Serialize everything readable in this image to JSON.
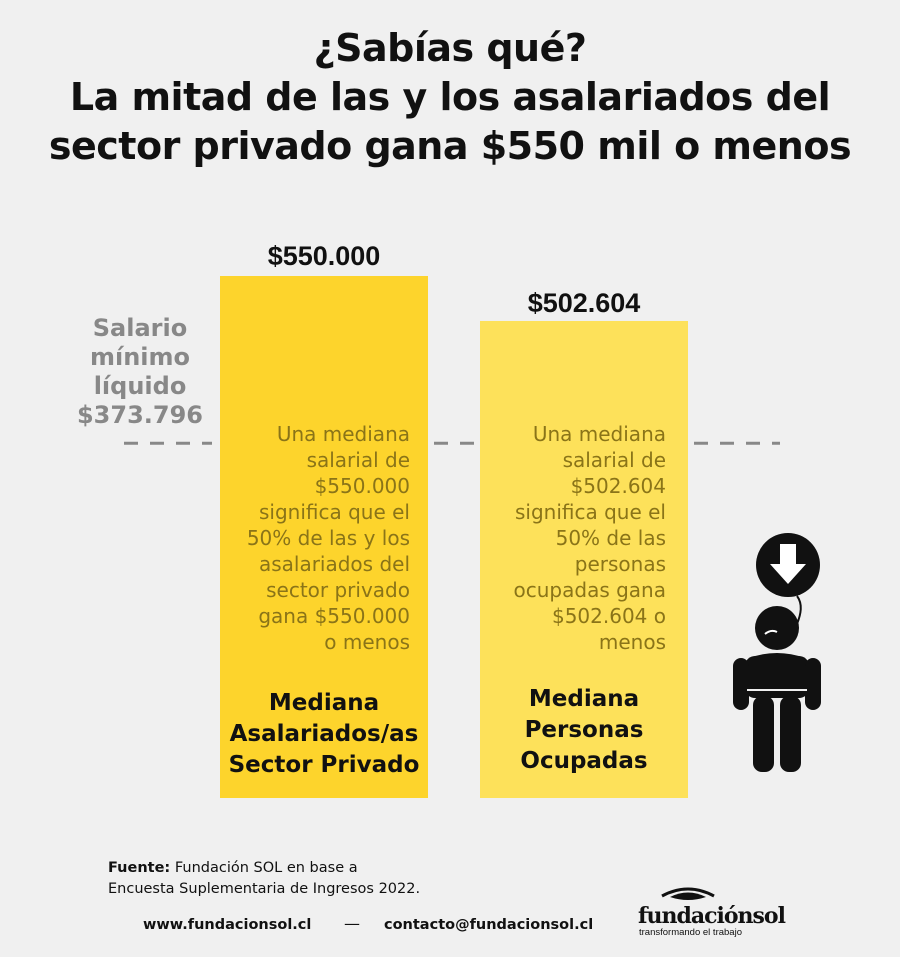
{
  "title": {
    "line1": "¿Sabías qué?",
    "line2": "La mitad de las y los asalariados del",
    "line3": "sector privado gana $550 mil o menos"
  },
  "chart_data": {
    "type": "bar",
    "categories": [
      "Mediana Asalariados/as Sector Privado",
      "Mediana Personas Ocupadas"
    ],
    "values": [
      550000,
      502604
    ],
    "value_labels": [
      "$550.000",
      "$502.604"
    ],
    "bar_colors": [
      "#fdd42c",
      "#fde15a"
    ],
    "descriptions": [
      [
        "Una mediana",
        "salarial de",
        "$550.000",
        "significa que el",
        "50% de las y los",
        "asalariados del",
        "sector privado",
        "gana $550.000",
        "o menos"
      ],
      [
        "Una mediana",
        "salarial de",
        "$502.604",
        "significa que el",
        "50% de las",
        "personas",
        "ocupadas gana",
        "$502.604 o",
        "menos"
      ]
    ],
    "category_lines": [
      [
        "Mediana",
        "Asalariados/as",
        "Sector Privado"
      ],
      [
        "Mediana",
        "Personas",
        "Ocupadas"
      ]
    ],
    "reference_line": {
      "value": 373796,
      "label_lines": [
        "Salario",
        "mínimo",
        "líquido",
        "$373.796"
      ],
      "style": "dashed",
      "color": "#888888"
    },
    "grid": false,
    "legend": "none"
  },
  "icon": {
    "name": "sad-person-with-down-arrow-balloon-icon"
  },
  "source": {
    "label": "Fuente:",
    "text": "Fundación SOL en base a",
    "line2": "Encuesta Suplementaria de Ingresos 2022."
  },
  "footer": {
    "website": "www.fundacionsol.cl",
    "separator": "—",
    "email": "contacto@fundacionsol.cl",
    "logo_name": "fundaciónsol",
    "logo_tagline": "transformando el trabajo"
  }
}
